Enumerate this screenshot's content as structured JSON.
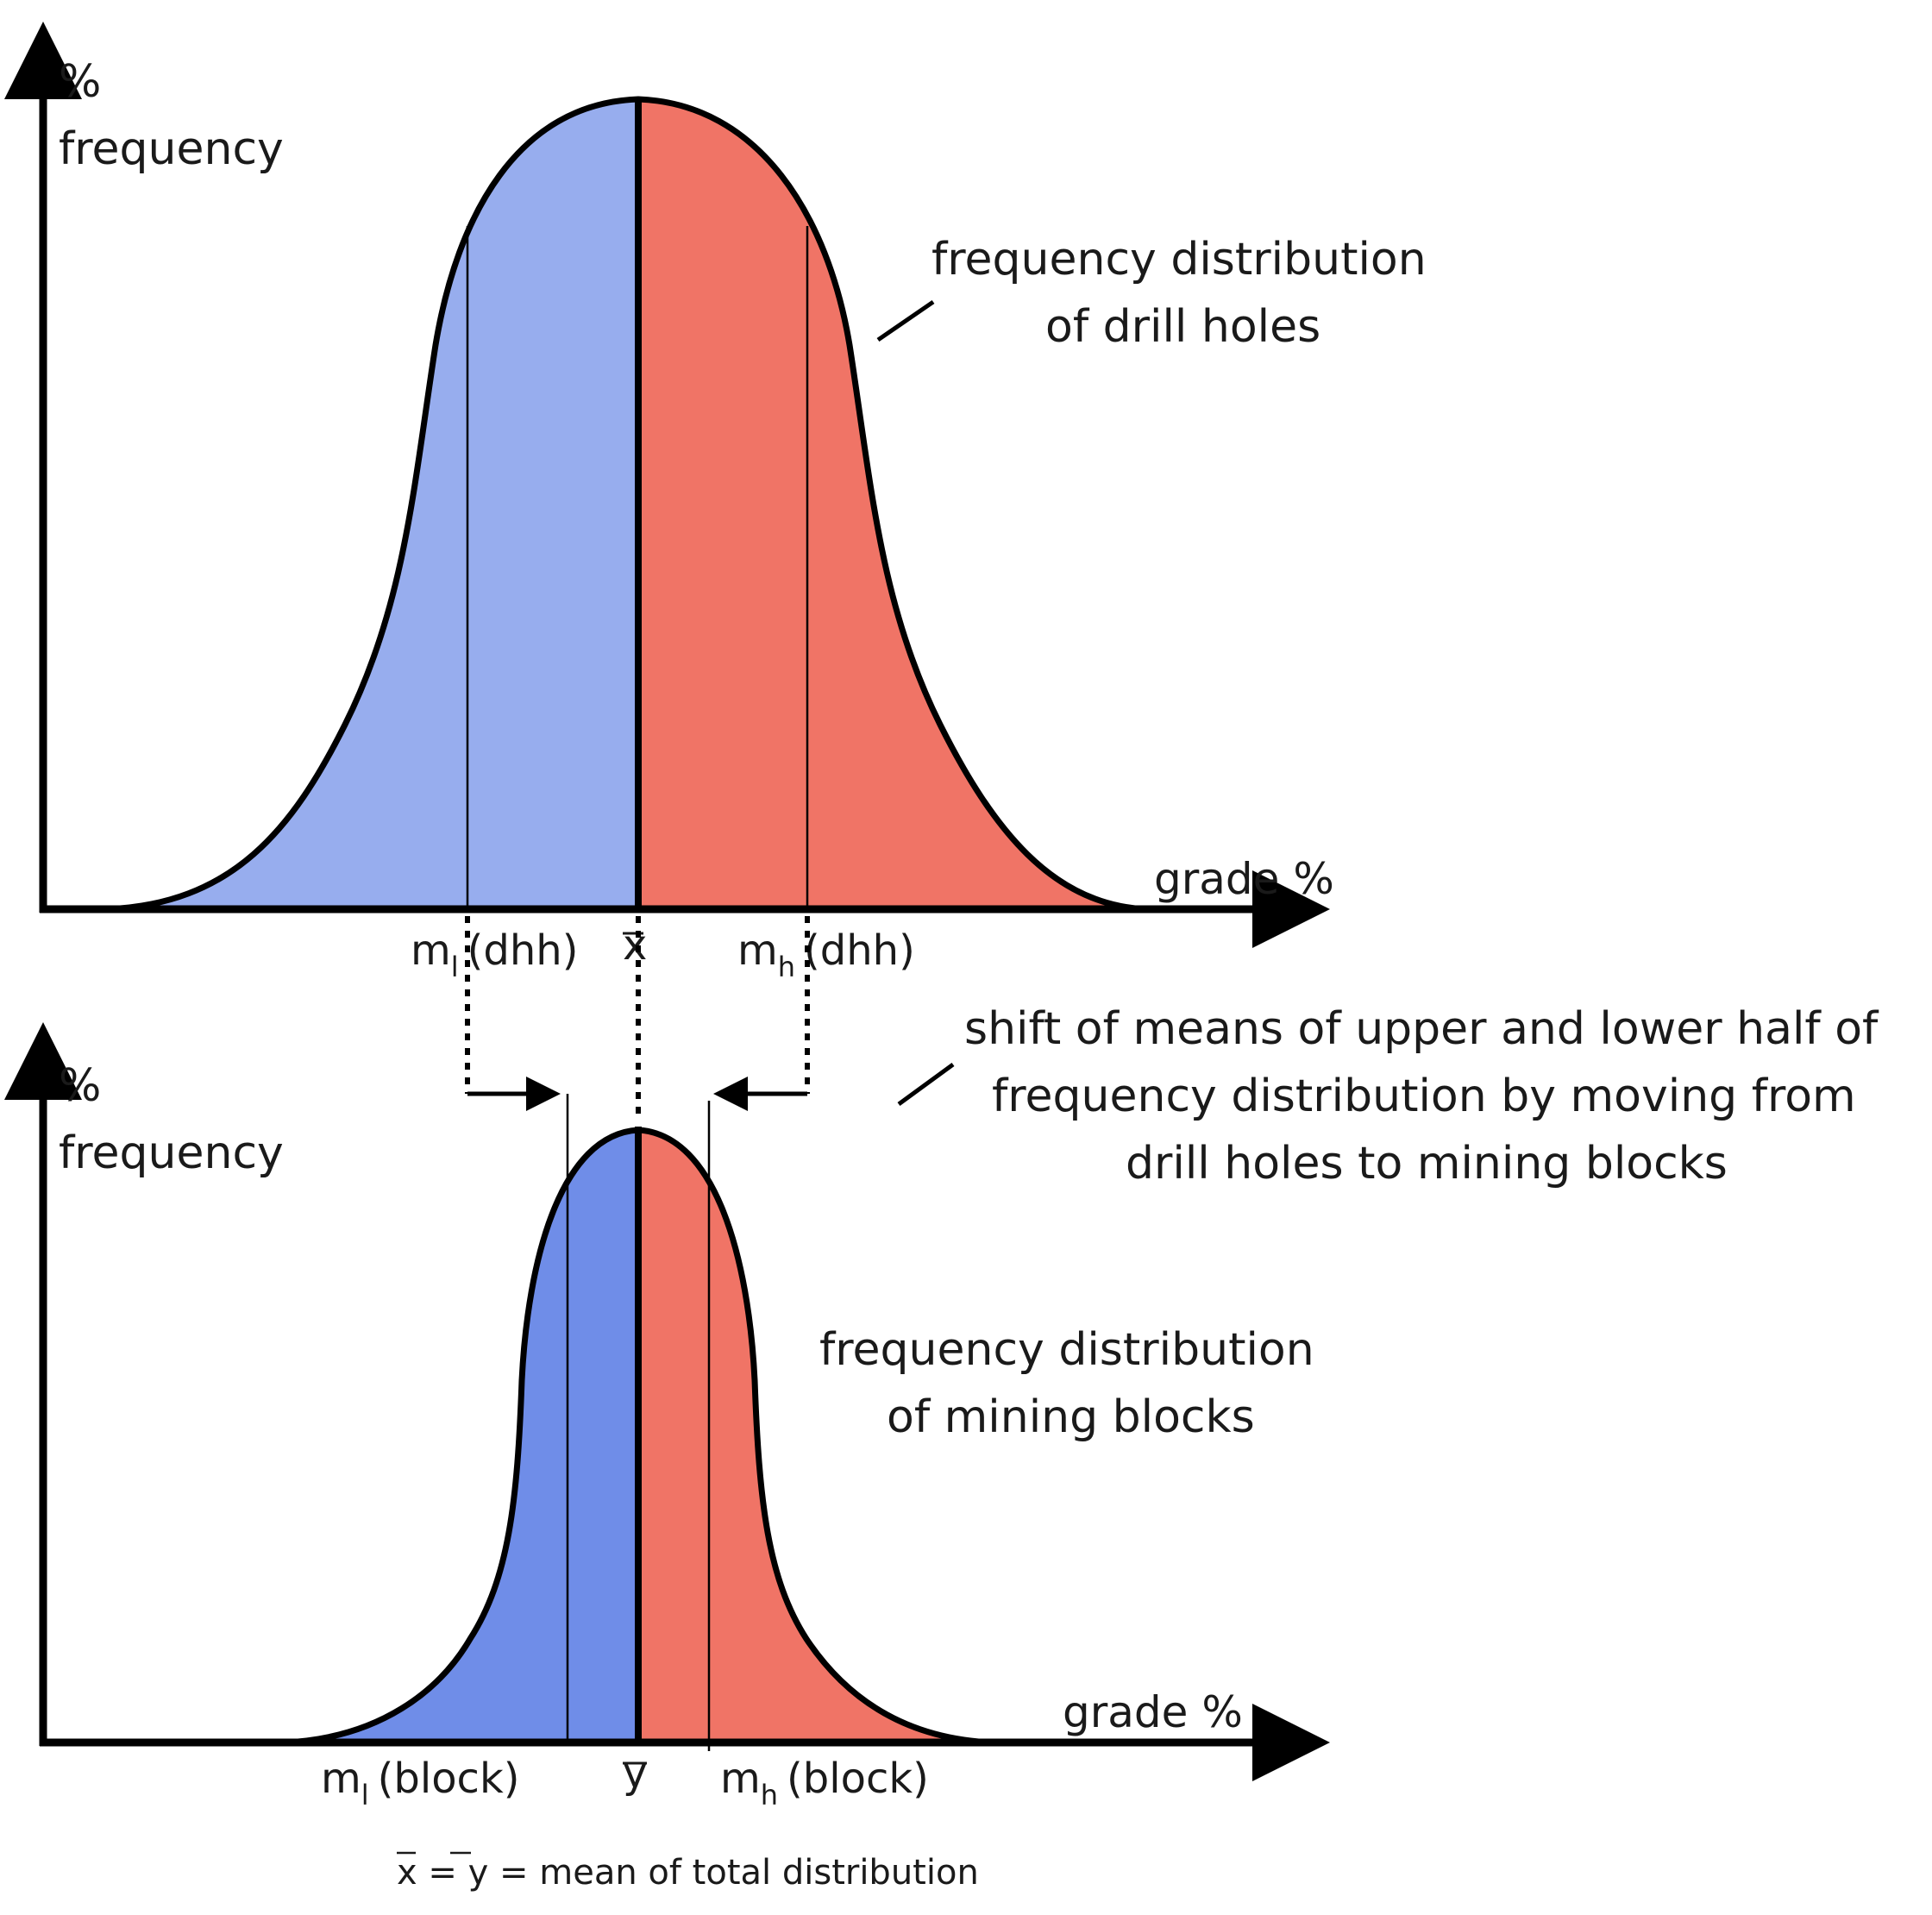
{
  "top_chart": {
    "y_axis_label_line1": "%",
    "y_axis_label_line2": "frequency",
    "x_axis_label": "grade %",
    "annotation_line1": "frequency distribution",
    "annotation_line2": "of drill holes",
    "mean_label": "x",
    "low_mean": {
      "symbol": "m",
      "sub": "l",
      "suffix": "(dhh)"
    },
    "high_mean": {
      "symbol": "m",
      "sub": "h",
      "suffix": "(dhh)"
    }
  },
  "bottom_chart": {
    "y_axis_label_line1": "%",
    "y_axis_label_line2": "frequency",
    "x_axis_label": "grade %",
    "annotation_line1": "frequency distribution",
    "annotation_line2": "of mining blocks",
    "mean_label": "y",
    "low_mean": {
      "symbol": "m",
      "sub": "l",
      "suffix": "(block)"
    },
    "high_mean": {
      "symbol": "m",
      "sub": "h",
      "suffix": "(block)"
    }
  },
  "shift_annotation": {
    "line1": "shift of means of upper and lower half of",
    "line2": "frequency distribution by moving from",
    "line3": "drill holes to mining blocks"
  },
  "footnote": {
    "x": "x",
    "eq1": "=",
    "y": "y",
    "text": "= mean of total distribution"
  },
  "colors": {
    "top_low_half": "#97adee",
    "top_high_half": "#f07466",
    "bottom_low_half": "#6f8de8",
    "bottom_high_half": "#f07466",
    "line": "#000000"
  }
}
